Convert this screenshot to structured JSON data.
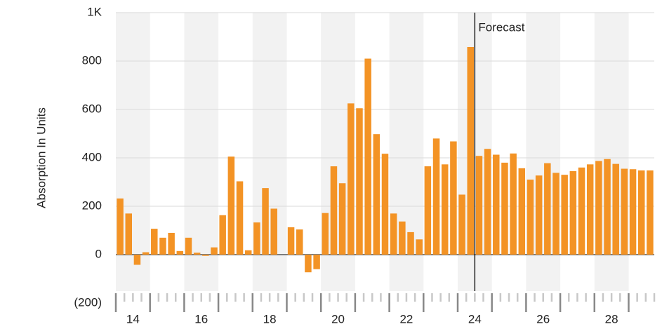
{
  "chart_data": {
    "type": "bar",
    "y_label": "Absorption In Units",
    "color": "#f39325",
    "x": [
      14.125,
      14.375,
      14.625,
      14.875,
      15.125,
      15.375,
      15.625,
      15.875,
      16.125,
      16.375,
      16.625,
      16.875,
      17.125,
      17.375,
      17.625,
      17.875,
      18.125,
      18.375,
      18.625,
      18.875,
      19.125,
      19.375,
      19.625,
      19.875,
      20.125,
      20.375,
      20.625,
      20.875,
      21.125,
      21.375,
      21.625,
      21.875,
      22.125,
      22.375,
      22.625,
      22.875,
      23.125,
      23.375,
      23.625,
      23.875,
      24.125,
      24.375,
      24.625,
      24.875,
      25.125,
      25.375,
      25.625,
      25.875,
      26.125,
      26.375,
      26.625,
      26.875,
      27.125,
      27.375,
      27.625,
      27.875,
      28.125,
      28.375,
      28.625,
      28.875,
      29.125,
      29.375,
      29.625
    ],
    "values": [
      232,
      170,
      -42,
      10,
      107,
      70,
      90,
      15,
      70,
      8,
      -5,
      30,
      163,
      405,
      303,
      18,
      133,
      275,
      190,
      0,
      113,
      104,
      -73,
      -60,
      172,
      365,
      295,
      625,
      605,
      810,
      498,
      417,
      170,
      137,
      93,
      63,
      365,
      480,
      373,
      468,
      248,
      858,
      408,
      437,
      413,
      380,
      418,
      357,
      310,
      327,
      378,
      338,
      330,
      345,
      360,
      373,
      387,
      395,
      375,
      355,
      353,
      348,
      348
    ],
    "xlim": [
      14,
      29.75
    ],
    "xticks": [
      {
        "value": 14.5,
        "label": "14"
      },
      {
        "value": 16.5,
        "label": "16"
      },
      {
        "value": 18.5,
        "label": "18"
      },
      {
        "value": 20.5,
        "label": "20"
      },
      {
        "value": 22.5,
        "label": "22"
      },
      {
        "value": 24.5,
        "label": "24"
      },
      {
        "value": 26.5,
        "label": "26"
      },
      {
        "value": 28.5,
        "label": "28"
      }
    ],
    "ylim": [
      -200,
      1000
    ],
    "yticks": [
      {
        "value": -200,
        "label": "(200)"
      },
      0,
      200,
      400,
      600,
      800,
      {
        "value": 1000,
        "label": "1K"
      }
    ],
    "grid": true,
    "forecast": {
      "x": 24.5,
      "label": "Forecast"
    }
  }
}
